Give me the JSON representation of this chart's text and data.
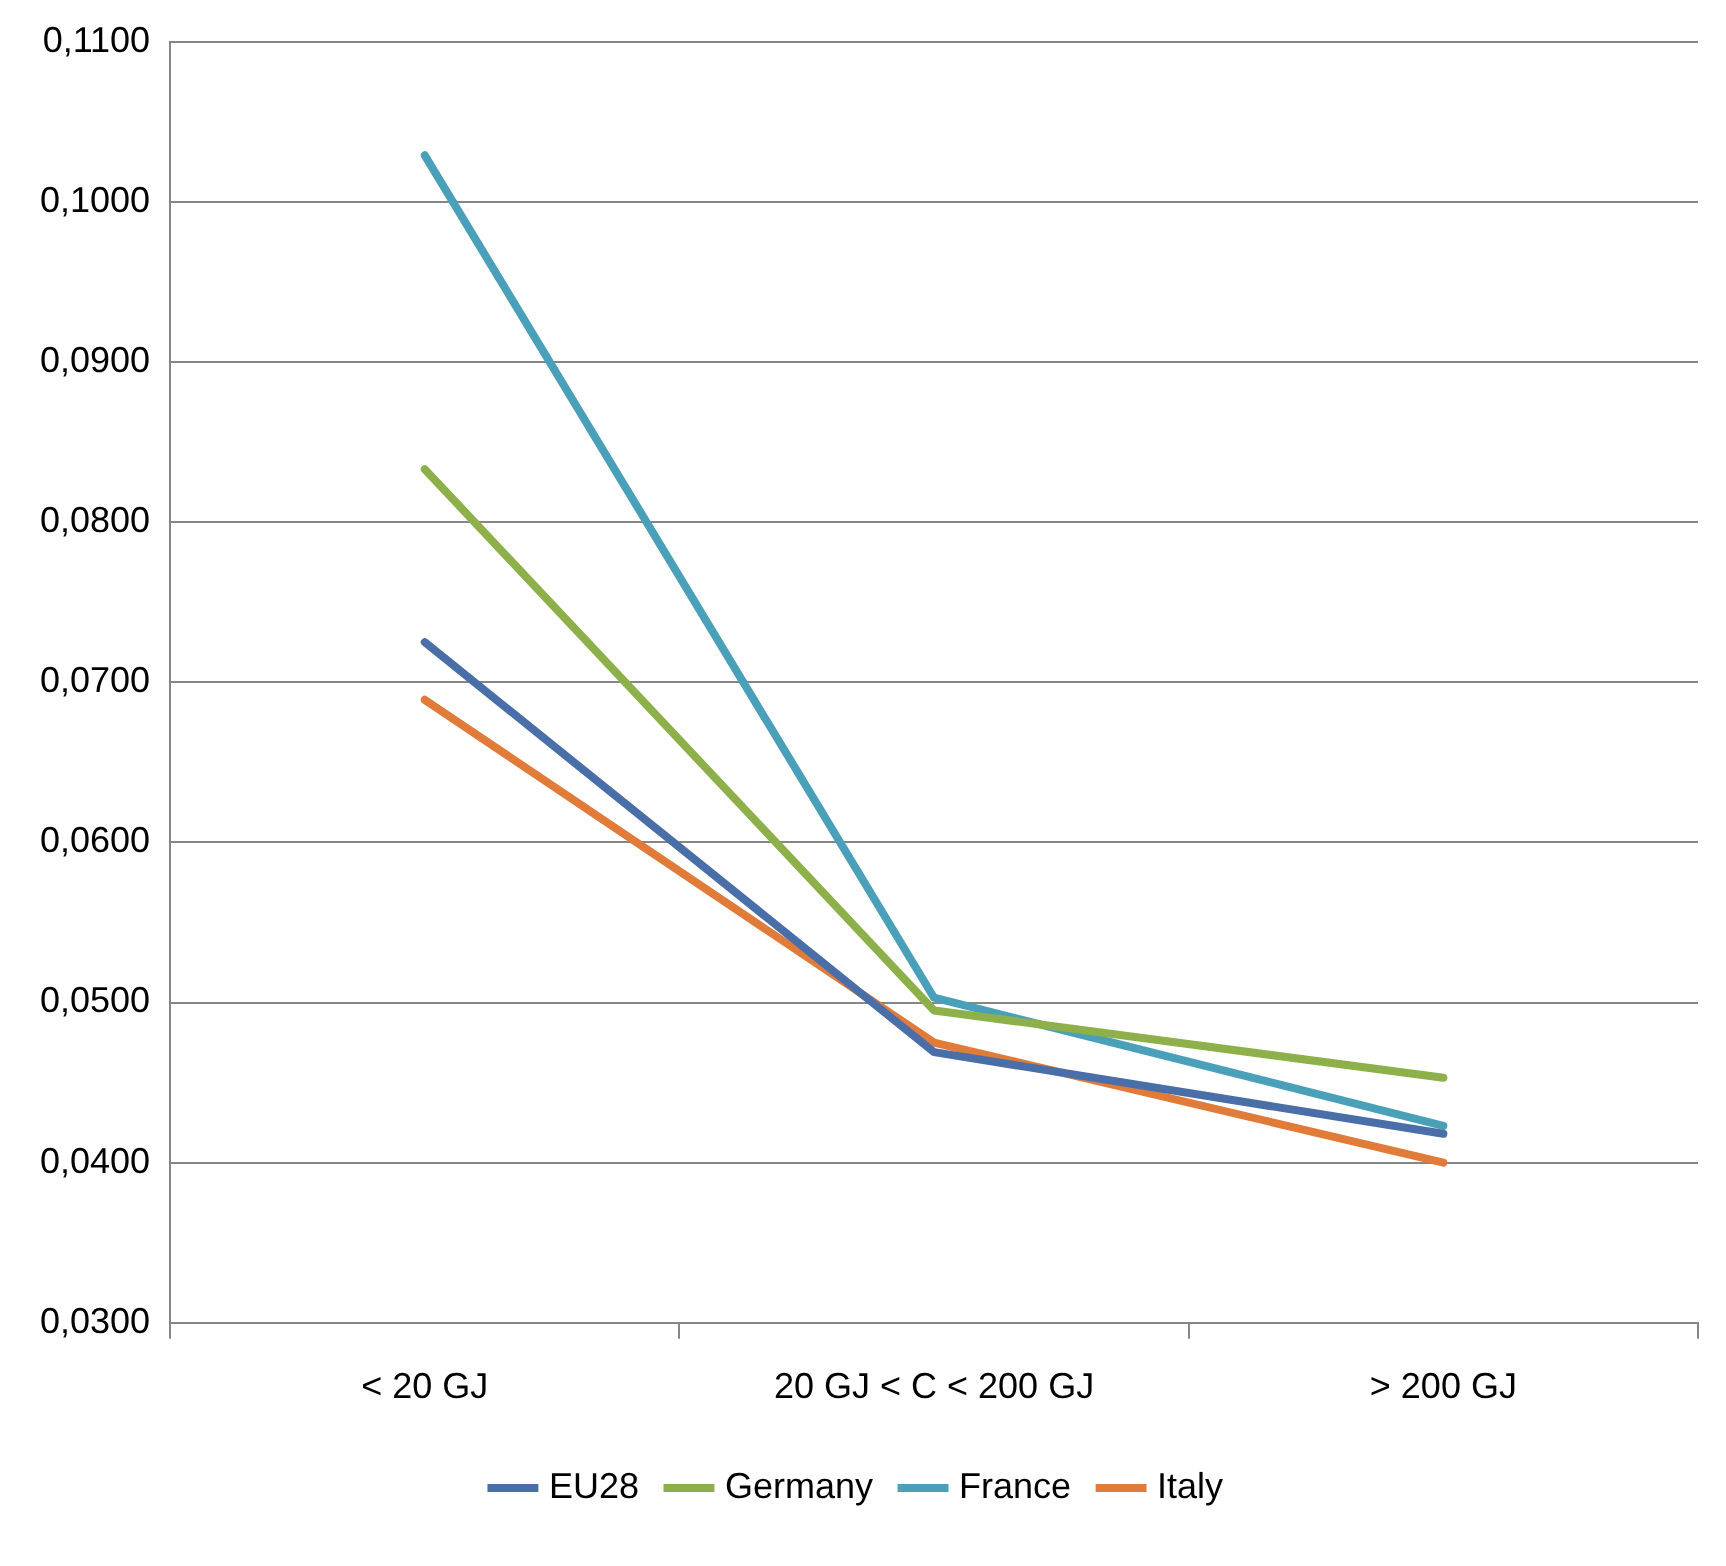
{
  "chart_data": {
    "type": "line",
    "categories": [
      "< 20 GJ",
      "20 GJ < C < 200 GJ",
      "> 200 GJ"
    ],
    "series": [
      {
        "name": "EU28",
        "color": "#4a6fa8",
        "values": [
          0.0725,
          0.0469,
          0.0418
        ]
      },
      {
        "name": "Germany",
        "color": "#8db04a",
        "values": [
          0.0833,
          0.0495,
          0.0453
        ]
      },
      {
        "name": "France",
        "color": "#4aa0b8",
        "values": [
          0.1029,
          0.0503,
          0.0423
        ]
      },
      {
        "name": "Italy",
        "color": "#e07b39",
        "values": [
          0.0689,
          0.0475,
          0.04
        ]
      }
    ],
    "ylim": [
      0.03,
      0.11
    ],
    "yticks": [
      {
        "value": 0.03,
        "label": "0,0300"
      },
      {
        "value": 0.04,
        "label": "0,0400"
      },
      {
        "value": 0.05,
        "label": "0,0500"
      },
      {
        "value": 0.06,
        "label": "0,0600"
      },
      {
        "value": 0.07,
        "label": "0,0700"
      },
      {
        "value": 0.08,
        "label": "0,0800"
      },
      {
        "value": 0.09,
        "label": "0,0900"
      },
      {
        "value": 0.1,
        "label": "0,1000"
      },
      {
        "value": 0.11,
        "label": "0,1100"
      }
    ],
    "grid": "y",
    "legend": "bottom",
    "marker": "none",
    "line_style": "solid"
  }
}
